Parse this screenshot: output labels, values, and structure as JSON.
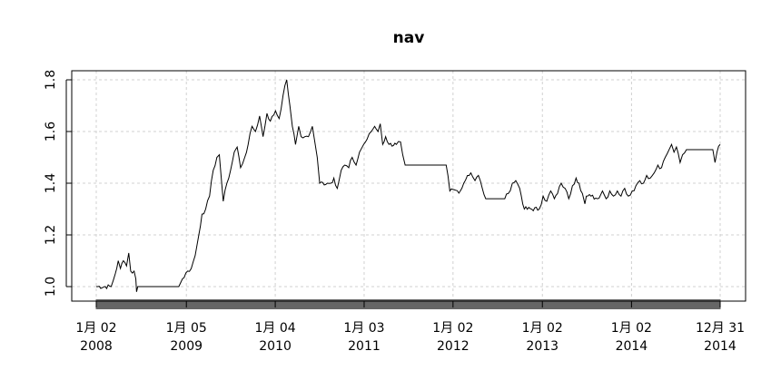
{
  "chart_data": {
    "type": "line",
    "title": "nav",
    "xlabel": "",
    "ylabel": "",
    "ylim": [
      0.95,
      1.83
    ],
    "xlim": [
      "2008-01-02",
      "2014-12-31"
    ],
    "yticks": [
      "1.0",
      "1.2",
      "1.4",
      "1.6",
      "1.8"
    ],
    "xticks": [
      {
        "date": "2008-01-02",
        "line1": "1月 02",
        "line2": "2008"
      },
      {
        "date": "2009-01-05",
        "line1": "1月 05",
        "line2": "2009"
      },
      {
        "date": "2010-01-04",
        "line1": "1月 04",
        "line2": "2010"
      },
      {
        "date": "2011-01-03",
        "line1": "1月 03",
        "line2": "2011"
      },
      {
        "date": "2012-01-02",
        "line1": "1月 02",
        "line2": "2012"
      },
      {
        "date": "2013-01-02",
        "line1": "1月 02",
        "line2": "2013"
      },
      {
        "date": "2014-01-02",
        "line1": "1月 02",
        "line2": "2014"
      },
      {
        "date": "2014-12-31",
        "line1": "12月 31",
        "line2": "2014"
      }
    ],
    "grid": true,
    "series": [
      {
        "points": [
          [
            "2008-01-02",
            1.0
          ],
          [
            "2008-03-03",
            1.0
          ],
          [
            "2008-03-20",
            1.05
          ],
          [
            "2008-04-01",
            1.1
          ],
          [
            "2008-04-10",
            1.07
          ],
          [
            "2008-04-22",
            1.1
          ],
          [
            "2008-05-05",
            1.08
          ],
          [
            "2008-05-14",
            1.13
          ],
          [
            "2008-05-22",
            1.06
          ],
          [
            "2008-06-05",
            1.06
          ],
          [
            "2008-06-12",
            1.03
          ],
          [
            "2008-06-15",
            0.98
          ],
          [
            "2008-06-20",
            1.0
          ],
          [
            "2008-12-05",
            1.0
          ],
          [
            "2008-12-20",
            1.03
          ],
          [
            "2009-01-10",
            1.06
          ],
          [
            "2009-01-25",
            1.07
          ],
          [
            "2009-02-10",
            1.12
          ],
          [
            "2009-02-25",
            1.2
          ],
          [
            "2009-03-10",
            1.28
          ],
          [
            "2009-03-25",
            1.3
          ],
          [
            "2009-04-10",
            1.35
          ],
          [
            "2009-04-25",
            1.45
          ],
          [
            "2009-05-10",
            1.5
          ],
          [
            "2009-05-20",
            1.51
          ],
          [
            "2009-06-05",
            1.33
          ],
          [
            "2009-06-20",
            1.4
          ],
          [
            "2009-07-05",
            1.45
          ],
          [
            "2009-07-20",
            1.52
          ],
          [
            "2009-08-01",
            1.54
          ],
          [
            "2009-08-15",
            1.46
          ],
          [
            "2009-09-01",
            1.5
          ],
          [
            "2009-09-15",
            1.55
          ],
          [
            "2009-10-01",
            1.62
          ],
          [
            "2009-10-15",
            1.6
          ],
          [
            "2009-11-01",
            1.66
          ],
          [
            "2009-11-15",
            1.58
          ],
          [
            "2009-12-01",
            1.67
          ],
          [
            "2009-12-15",
            1.64
          ],
          [
            "2010-01-05",
            1.68
          ],
          [
            "2010-01-20",
            1.65
          ],
          [
            "2010-02-05",
            1.74
          ],
          [
            "2010-02-20",
            1.8
          ],
          [
            "2010-03-05",
            1.7
          ],
          [
            "2010-03-15",
            1.62
          ],
          [
            "2010-03-28",
            1.55
          ],
          [
            "2010-04-10",
            1.62
          ],
          [
            "2010-04-20",
            1.58
          ],
          [
            "2010-05-05",
            1.58
          ],
          [
            "2010-05-20",
            1.58
          ],
          [
            "2010-06-05",
            1.62
          ],
          [
            "2010-06-15",
            1.56
          ],
          [
            "2010-06-25",
            1.5
          ],
          [
            "2010-07-05",
            1.4
          ],
          [
            "2010-08-05",
            1.4
          ],
          [
            "2010-08-20",
            1.4
          ],
          [
            "2010-09-01",
            1.42
          ],
          [
            "2010-09-15",
            1.38
          ],
          [
            "2010-10-01",
            1.45
          ],
          [
            "2010-10-15",
            1.47
          ],
          [
            "2010-11-01",
            1.46
          ],
          [
            "2010-11-15",
            1.5
          ],
          [
            "2010-12-01",
            1.47
          ],
          [
            "2010-12-15",
            1.52
          ],
          [
            "2011-01-01",
            1.55
          ],
          [
            "2011-01-15",
            1.57
          ],
          [
            "2011-02-01",
            1.6
          ],
          [
            "2011-02-15",
            1.62
          ],
          [
            "2011-03-01",
            1.6
          ],
          [
            "2011-03-10",
            1.63
          ],
          [
            "2011-03-20",
            1.55
          ],
          [
            "2011-04-01",
            1.58
          ],
          [
            "2011-04-15",
            1.55
          ],
          [
            "2011-05-15",
            1.55
          ],
          [
            "2011-06-01",
            1.56
          ],
          [
            "2011-06-10",
            1.51
          ],
          [
            "2011-06-20",
            1.47
          ],
          [
            "2011-09-05",
            1.47
          ],
          [
            "2011-12-05",
            1.47
          ],
          [
            "2011-12-20",
            1.37
          ],
          [
            "2012-02-01",
            1.37
          ],
          [
            "2012-02-15",
            1.4
          ],
          [
            "2012-03-01",
            1.43
          ],
          [
            "2012-03-15",
            1.44
          ],
          [
            "2012-04-01",
            1.41
          ],
          [
            "2012-04-15",
            1.43
          ],
          [
            "2012-05-01",
            1.38
          ],
          [
            "2012-05-15",
            1.34
          ],
          [
            "2012-08-01",
            1.34
          ],
          [
            "2012-08-15",
            1.36
          ],
          [
            "2012-09-01",
            1.4
          ],
          [
            "2012-09-15",
            1.41
          ],
          [
            "2012-10-01",
            1.38
          ],
          [
            "2012-10-20",
            1.3
          ],
          [
            "2012-12-20",
            1.3
          ],
          [
            "2013-01-05",
            1.35
          ],
          [
            "2013-01-20",
            1.33
          ],
          [
            "2013-02-05",
            1.37
          ],
          [
            "2013-02-20",
            1.34
          ],
          [
            "2013-03-05",
            1.36
          ],
          [
            "2013-03-20",
            1.4
          ],
          [
            "2013-04-05",
            1.38
          ],
          [
            "2013-04-20",
            1.34
          ],
          [
            "2013-05-05",
            1.39
          ],
          [
            "2013-05-20",
            1.42
          ],
          [
            "2013-06-01",
            1.4
          ],
          [
            "2013-06-15",
            1.36
          ],
          [
            "2013-06-25",
            1.32
          ],
          [
            "2013-07-01",
            1.35
          ],
          [
            "2013-07-20",
            1.35
          ],
          [
            "2013-08-15",
            1.34
          ],
          [
            "2013-09-05",
            1.37
          ],
          [
            "2013-09-20",
            1.34
          ],
          [
            "2013-10-05",
            1.37
          ],
          [
            "2013-10-20",
            1.35
          ],
          [
            "2013-11-05",
            1.37
          ],
          [
            "2013-11-20",
            1.35
          ],
          [
            "2013-12-05",
            1.38
          ],
          [
            "2013-12-20",
            1.35
          ],
          [
            "2014-01-05",
            1.37
          ],
          [
            "2014-01-20",
            1.39
          ],
          [
            "2014-02-05",
            1.41
          ],
          [
            "2014-02-20",
            1.4
          ],
          [
            "2014-03-05",
            1.43
          ],
          [
            "2014-03-20",
            1.42
          ],
          [
            "2014-04-05",
            1.44
          ],
          [
            "2014-04-20",
            1.47
          ],
          [
            "2014-05-05",
            1.46
          ],
          [
            "2014-05-20",
            1.5
          ],
          [
            "2014-06-05",
            1.53
          ],
          [
            "2014-06-15",
            1.55
          ],
          [
            "2014-06-25",
            1.52
          ],
          [
            "2014-07-05",
            1.54
          ],
          [
            "2014-07-20",
            1.48
          ],
          [
            "2014-07-30",
            1.51
          ],
          [
            "2014-08-15",
            1.53
          ],
          [
            "2014-12-01",
            1.53
          ],
          [
            "2014-12-10",
            1.48
          ],
          [
            "2014-12-18",
            1.52
          ],
          [
            "2014-12-31",
            1.55
          ]
        ]
      }
    ]
  }
}
